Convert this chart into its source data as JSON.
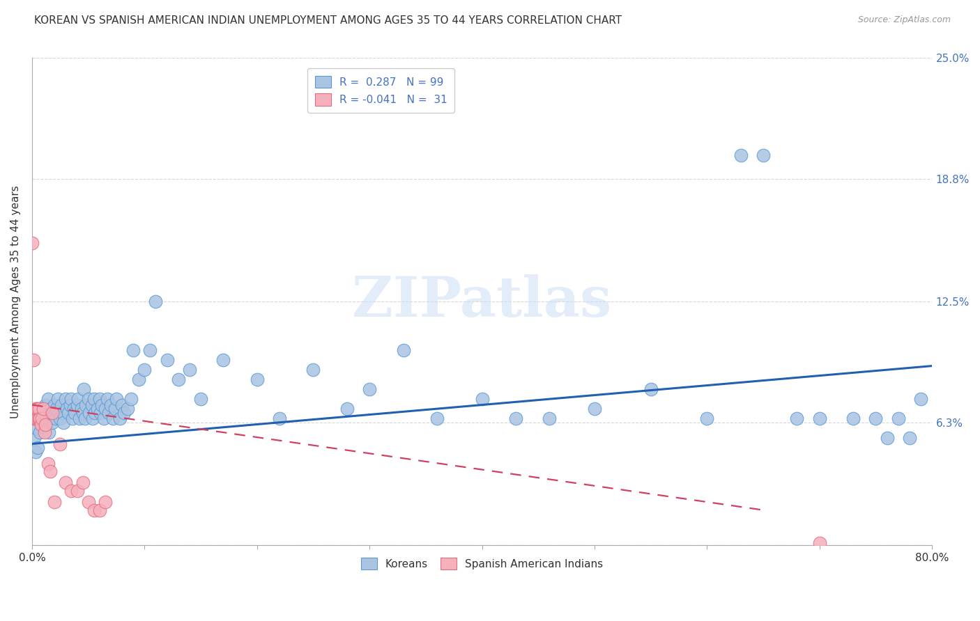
{
  "title": "KOREAN VS SPANISH AMERICAN INDIAN UNEMPLOYMENT AMONG AGES 35 TO 44 YEARS CORRELATION CHART",
  "source": "Source: ZipAtlas.com",
  "ylabel": "Unemployment Among Ages 35 to 44 years",
  "xlim": [
    0.0,
    0.8
  ],
  "ylim": [
    0.0,
    0.25
  ],
  "ytick_vals": [
    0.0,
    0.063,
    0.125,
    0.188,
    0.25
  ],
  "ytick_labels": [
    "",
    "6.3%",
    "12.5%",
    "18.8%",
    "25.0%"
  ],
  "xtick_vals": [
    0.0,
    0.1,
    0.2,
    0.3,
    0.4,
    0.5,
    0.6,
    0.7,
    0.8
  ],
  "xtick_labels": [
    "0.0%",
    "",
    "",
    "",
    "",
    "",
    "",
    "",
    "80.0%"
  ],
  "korean_color": "#aac4e2",
  "spanish_color": "#f5b0bc",
  "korean_edge_color": "#5b9bd5",
  "spanish_edge_color": "#e07080",
  "trend_korean_color": "#2060b0",
  "trend_spanish_color": "#d04060",
  "legend_korean_label": "R =  0.287   N = 99",
  "legend_spanish_label": "R = -0.041   N =  31",
  "watermark": "ZIPatlas",
  "bottom_legend": [
    "Koreans",
    "Spanish American Indians"
  ],
  "korean_x": [
    0.002,
    0.003,
    0.004,
    0.005,
    0.006,
    0.007,
    0.008,
    0.009,
    0.01,
    0.011,
    0.012,
    0.013,
    0.014,
    0.015,
    0.016,
    0.017,
    0.018,
    0.019,
    0.02,
    0.021,
    0.022,
    0.023,
    0.024,
    0.025,
    0.026,
    0.027,
    0.028,
    0.03,
    0.031,
    0.032,
    0.034,
    0.035,
    0.036,
    0.037,
    0.038,
    0.04,
    0.041,
    0.042,
    0.044,
    0.045,
    0.046,
    0.047,
    0.048,
    0.05,
    0.051,
    0.053,
    0.054,
    0.055,
    0.056,
    0.058,
    0.06,
    0.061,
    0.062,
    0.064,
    0.065,
    0.067,
    0.068,
    0.07,
    0.072,
    0.074,
    0.075,
    0.078,
    0.08,
    0.082,
    0.085,
    0.088,
    0.09,
    0.095,
    0.1,
    0.105,
    0.11,
    0.12,
    0.13,
    0.14,
    0.15,
    0.17,
    0.2,
    0.22,
    0.25,
    0.28,
    0.3,
    0.33,
    0.36,
    0.4,
    0.43,
    0.46,
    0.5,
    0.55,
    0.6,
    0.63,
    0.65,
    0.68,
    0.7,
    0.73,
    0.75,
    0.76,
    0.77,
    0.78,
    0.79
  ],
  "korean_y": [
    0.055,
    0.048,
    0.06,
    0.05,
    0.065,
    0.058,
    0.07,
    0.062,
    0.068,
    0.06,
    0.072,
    0.065,
    0.075,
    0.058,
    0.065,
    0.07,
    0.063,
    0.068,
    0.072,
    0.065,
    0.07,
    0.075,
    0.068,
    0.065,
    0.072,
    0.068,
    0.063,
    0.075,
    0.07,
    0.068,
    0.072,
    0.075,
    0.065,
    0.07,
    0.068,
    0.072,
    0.075,
    0.065,
    0.07,
    0.068,
    0.08,
    0.065,
    0.072,
    0.075,
    0.068,
    0.072,
    0.065,
    0.075,
    0.068,
    0.07,
    0.075,
    0.068,
    0.072,
    0.065,
    0.07,
    0.075,
    0.068,
    0.072,
    0.065,
    0.07,
    0.075,
    0.065,
    0.072,
    0.068,
    0.07,
    0.075,
    0.1,
    0.085,
    0.09,
    0.1,
    0.125,
    0.095,
    0.085,
    0.09,
    0.075,
    0.095,
    0.085,
    0.065,
    0.09,
    0.07,
    0.08,
    0.1,
    0.065,
    0.075,
    0.065,
    0.065,
    0.07,
    0.08,
    0.065,
    0.2,
    0.2,
    0.065,
    0.065,
    0.065,
    0.065,
    0.055,
    0.065,
    0.055,
    0.075
  ],
  "spanish_x": [
    0.0,
    0.001,
    0.002,
    0.003,
    0.003,
    0.004,
    0.004,
    0.005,
    0.005,
    0.006,
    0.006,
    0.007,
    0.008,
    0.009,
    0.01,
    0.011,
    0.012,
    0.014,
    0.016,
    0.018,
    0.02,
    0.025,
    0.03,
    0.035,
    0.04,
    0.045,
    0.05,
    0.055,
    0.06,
    0.065,
    0.7
  ],
  "spanish_y": [
    0.155,
    0.095,
    0.065,
    0.065,
    0.07,
    0.065,
    0.07,
    0.065,
    0.07,
    0.065,
    0.07,
    0.065,
    0.062,
    0.065,
    0.07,
    0.058,
    0.062,
    0.042,
    0.038,
    0.068,
    0.022,
    0.052,
    0.032,
    0.028,
    0.028,
    0.032,
    0.022,
    0.018,
    0.018,
    0.022,
    0.001
  ],
  "korean_trend_x0": 0.0,
  "korean_trend_y0": 0.052,
  "korean_trend_x1": 0.8,
  "korean_trend_y1": 0.092,
  "spanish_trend_x0": 0.0,
  "spanish_trend_y0": 0.072,
  "spanish_trend_x1": 0.65,
  "spanish_trend_y1": 0.018
}
